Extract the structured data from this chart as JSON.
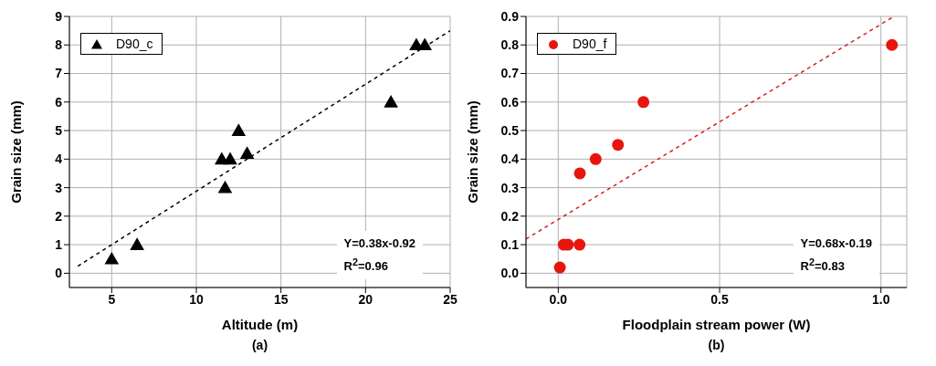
{
  "chart_data": [
    {
      "type": "scatter",
      "xlabel": "Altitude (m)",
      "ylabel": "Grain size (mm)",
      "annotations": [
        "Y=0.38x-0.92",
        "R$^{2}$=0.96",
        "(a)"
      ],
      "xlim": [
        2.5,
        25
      ],
      "ylim": [
        -0.5,
        9
      ],
      "xticks": [
        5,
        10,
        15,
        20,
        25
      ],
      "yticks": [
        0,
        1,
        2,
        3,
        4,
        5,
        6,
        7,
        8,
        9
      ],
      "grid": true,
      "legend": "top left",
      "series": [
        {
          "name": "D90_c",
          "color": "#000000",
          "marker": "triangle",
          "x": [
            5,
            6.5,
            11.5,
            12,
            11.7,
            12.5,
            13,
            21.5,
            23,
            23.5
          ],
          "values": [
            0.5,
            1,
            4,
            4,
            3,
            5,
            4.2,
            6,
            8,
            8
          ]
        },
        {
          "type": "line",
          "color": "#000000",
          "line_style": "dashed",
          "marker": "none",
          "x": [
            3,
            25
          ],
          "values": [
            0.25,
            8.5
          ]
        }
      ]
    },
    {
      "type": "scatter",
      "xlabel": "Floodplain stream power (W)",
      "ylabel": "Grain size (mm)",
      "annotations": [
        "Y=0.68x-0.19",
        "R$^{2}$=0.83",
        "(b)"
      ],
      "xlim": [
        -0.1,
        1.08
      ],
      "ylim": [
        -0.05,
        0.9
      ],
      "xticks": [
        {
          "value": 0,
          "label": "0.0"
        },
        {
          "value": 0.5,
          "label": "0.5"
        },
        {
          "value": 1,
          "label": "1.0"
        }
      ],
      "yticks": [
        {
          "value": 0,
          "label": "0.0"
        },
        {
          "value": 0.1,
          "label": "0.1"
        },
        {
          "value": 0.2,
          "label": "0.2"
        },
        {
          "value": 0.3,
          "label": "0.3"
        },
        {
          "value": 0.4,
          "label": "0.4"
        },
        {
          "value": 0.5,
          "label": "0.5"
        },
        {
          "value": 0.6,
          "label": "0.6"
        },
        {
          "value": 0.7,
          "label": "0.7"
        },
        {
          "value": 0.8,
          "label": "0.8"
        },
        {
          "value": 0.9,
          "label": "0.9"
        }
      ],
      "grid": true,
      "legend": "top left",
      "series": [
        {
          "name": "D90_f",
          "color": "#e8150f",
          "marker": "circle",
          "x": [
            0.005,
            0.017,
            0.03,
            0.066,
            0.067,
            0.116,
            0.185,
            0.264,
            1.034
          ],
          "values": [
            0.02,
            0.1,
            0.1,
            0.1,
            0.35,
            0.4,
            0.45,
            0.6,
            0.8
          ]
        },
        {
          "type": "line",
          "color": "#d42020",
          "line_style": "dashed",
          "marker": "none",
          "x": [
            -0.1,
            1.04
          ],
          "values": [
            0.12,
            0.9
          ]
        }
      ]
    }
  ]
}
